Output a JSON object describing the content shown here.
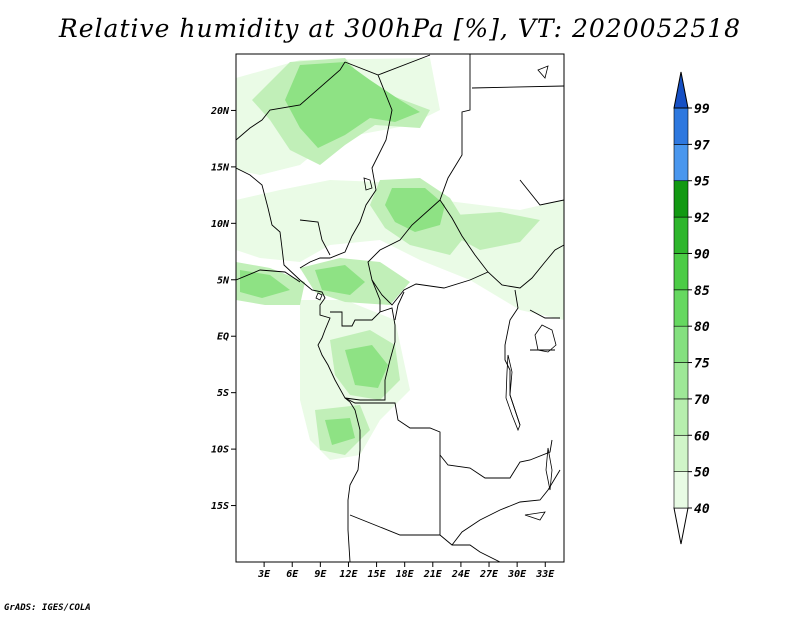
{
  "title": "Relative humidity at 300hPa [%], VT: 2020052518",
  "credit": "GrADS: IGES/COLA",
  "map": {
    "projection": "latlon",
    "lon_range": [
      0,
      35
    ],
    "lat_range": [
      -20,
      25
    ],
    "lon_ticks": [
      {
        "value": 3,
        "label": "3E"
      },
      {
        "value": 6,
        "label": "6E"
      },
      {
        "value": 9,
        "label": "9E"
      },
      {
        "value": 12,
        "label": "12E"
      },
      {
        "value": 15,
        "label": "15E"
      },
      {
        "value": 18,
        "label": "18E"
      },
      {
        "value": 21,
        "label": "21E"
      },
      {
        "value": 24,
        "label": "24E"
      },
      {
        "value": 27,
        "label": "27E"
      },
      {
        "value": 30,
        "label": "30E"
      },
      {
        "value": 33,
        "label": "33E"
      }
    ],
    "lat_ticks": [
      {
        "value": 20,
        "label": "20N"
      },
      {
        "value": 15,
        "label": "15N"
      },
      {
        "value": 10,
        "label": "10N"
      },
      {
        "value": 5,
        "label": "5N"
      },
      {
        "value": 0,
        "label": "EQ"
      },
      {
        "value": -5,
        "label": "5S"
      },
      {
        "value": -10,
        "label": "10S"
      },
      {
        "value": -15,
        "label": "15S"
      }
    ],
    "field_colors": {
      "40-50": "#eafbe6",
      "50-60": "#d6f5cf",
      "60-70": "#c1efb8",
      "70-75": "#a8e89c",
      "75-80": "#8ee284"
    }
  },
  "colorbar": {
    "levels": [
      "40",
      "50",
      "60",
      "70",
      "75",
      "80",
      "85",
      "90",
      "92",
      "95",
      "97",
      "99"
    ],
    "colors": [
      "#ffffff",
      "#e8fbe4",
      "#d0f5c8",
      "#b7efae",
      "#9ee897",
      "#84e07f",
      "#66d860",
      "#4ccc46",
      "#2eb62c",
      "#129912",
      "#4a97ee",
      "#2e78df",
      "#1650c4"
    ]
  }
}
